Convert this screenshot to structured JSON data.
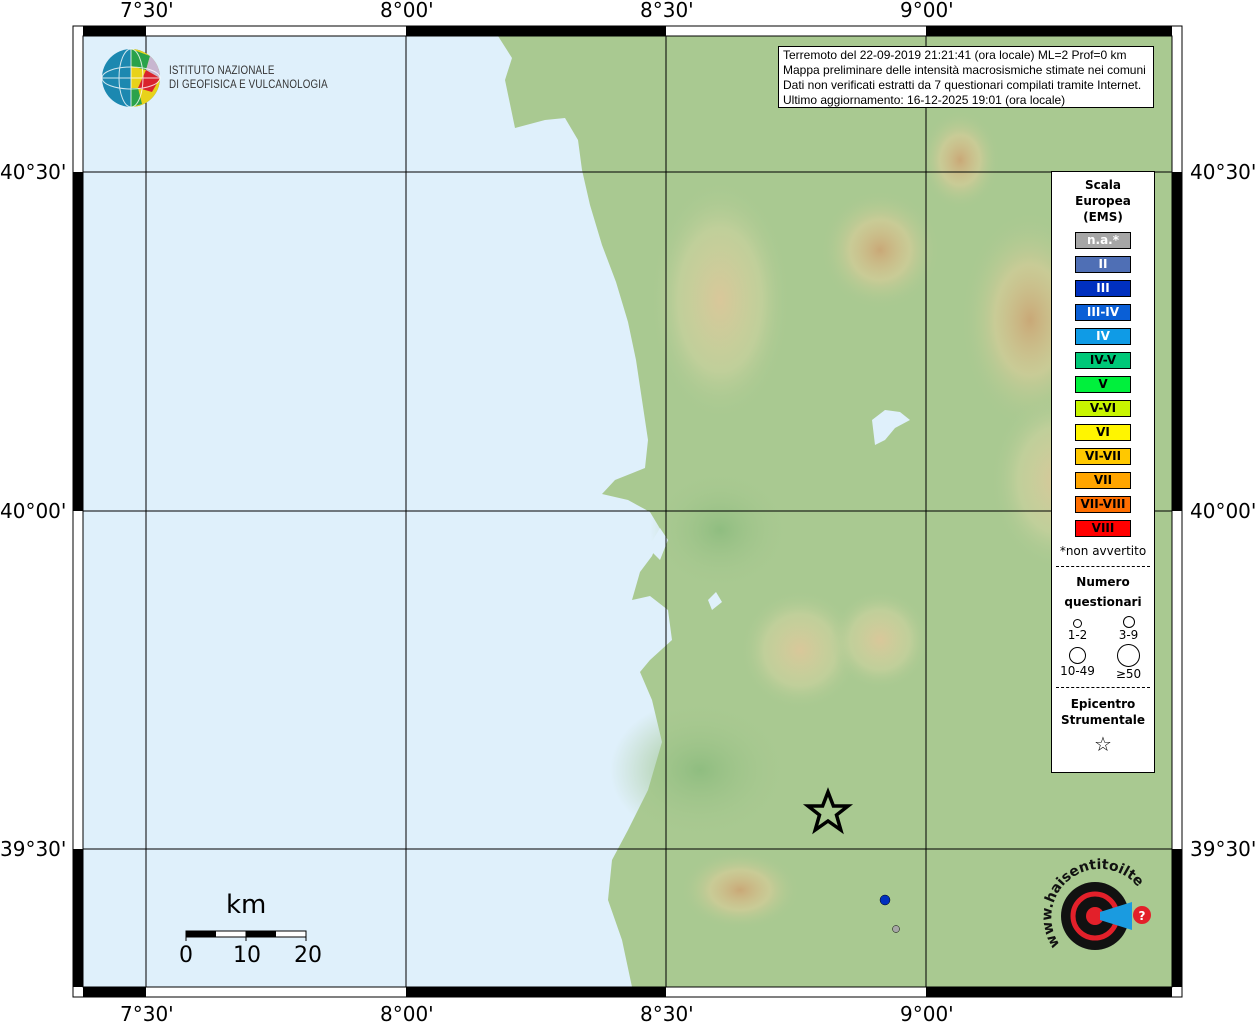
{
  "map": {
    "lon_labels": [
      "7°30'",
      "8°00'",
      "8°30'",
      "9°00'"
    ],
    "lat_labels": [
      "40°30'",
      "40°00'",
      "39°30'"
    ],
    "sea_color": "#dff0fb",
    "land_color": "#a9c991"
  },
  "info_box": {
    "line1": "Terremoto del 22-09-2019 21:21:41 (ora locale) ML=2 Prof=0 km",
    "line2": "Mappa preliminare delle intensità macrosismiche stimate nei comuni",
    "line3": "Dati non verificati estratti da 7 questionari compilati tramite Internet.",
    "line4": "Ultimo aggiornamento: 16-12-2025 19:01 (ora locale)"
  },
  "institute_logo": {
    "line1": "ISTITUTO NAZIONALE",
    "line2": "DI GEOFISICA E VULCANOLOGIA"
  },
  "legend": {
    "title1": "Scala",
    "title2": "Europea",
    "title3": "(EMS)",
    "classes": [
      {
        "label": "n.a.*",
        "color": "#a6a6a6",
        "text": "#ffffff"
      },
      {
        "label": "II",
        "color": "#4f6fb5",
        "text": "#ffffff"
      },
      {
        "label": "III",
        "color": "#0030bf",
        "text": "#ffffff"
      },
      {
        "label": "III-IV",
        "color": "#0a5fd6",
        "text": "#ffffff"
      },
      {
        "label": "IV",
        "color": "#0f9be6",
        "text": "#ffffff"
      },
      {
        "label": "IV-V",
        "color": "#00c878",
        "text": "#000000"
      },
      {
        "label": "V",
        "color": "#00f03c",
        "text": "#000000"
      },
      {
        "label": "V-VI",
        "color": "#c8f500",
        "text": "#000000"
      },
      {
        "label": "VI",
        "color": "#fff500",
        "text": "#000000"
      },
      {
        "label": "VI-VII",
        "color": "#ffc800",
        "text": "#000000"
      },
      {
        "label": "VII",
        "color": "#ffa500",
        "text": "#000000"
      },
      {
        "label": "VII-VIII",
        "color": "#ff6e00",
        "text": "#000000"
      },
      {
        "label": "VIII",
        "color": "#ff0000",
        "text": "#000000"
      }
    ],
    "na_note": "*non avvertito",
    "count_title1": "Numero",
    "count_title2": "questionari",
    "counts": [
      "1-2",
      "3-9",
      "10-49",
      "≥50"
    ],
    "epicenter_title1": "Epicentro",
    "epicenter_title2": "Strumentale",
    "epicenter_icon": "star-icon"
  },
  "scale_bar": {
    "unit": "km",
    "ticks": [
      "0",
      "10",
      "20"
    ]
  },
  "observations": [
    {
      "intensity": "III",
      "color": "#0030bf"
    },
    {
      "intensity": "n.a.*",
      "color": "#a6a6a6"
    }
  ],
  "haisentito_logo": {
    "text": "www.haisentitoilterremoto.it"
  }
}
